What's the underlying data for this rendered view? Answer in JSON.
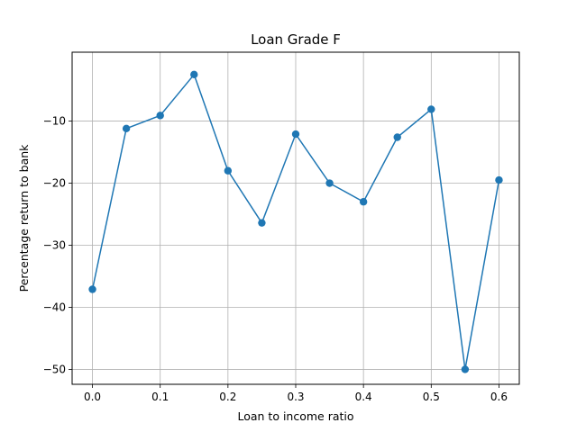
{
  "chart_data": {
    "type": "line",
    "title": "Loan Grade F",
    "xlabel": "Loan to income ratio",
    "ylabel": "Percentage return to bank",
    "xlim": [
      -0.03,
      0.63
    ],
    "ylim": [
      -52.4,
      1.1
    ],
    "grid": true,
    "series_color": "#1f77b4",
    "marker": "circle",
    "x": [
      0.0,
      0.05,
      0.1,
      0.15,
      0.2,
      0.25,
      0.3,
      0.35,
      0.4,
      0.45,
      0.5,
      0.55,
      0.6
    ],
    "y": [
      -37.1,
      -11.2,
      -9.1,
      -2.5,
      -18.0,
      -26.4,
      -12.1,
      -20.0,
      -23.0,
      -12.6,
      -8.1,
      -50.0,
      -19.5
    ],
    "xticks": [
      0.0,
      0.1,
      0.2,
      0.3,
      0.4,
      0.5,
      0.6
    ],
    "xtick_labels": [
      "0.0",
      "0.1",
      "0.2",
      "0.3",
      "0.4",
      "0.5",
      "0.6"
    ],
    "yticks": [
      -10,
      -20,
      -30,
      -40,
      -50
    ],
    "ytick_labels": [
      "−10",
      "−20",
      "−30",
      "−40",
      "−50"
    ]
  }
}
